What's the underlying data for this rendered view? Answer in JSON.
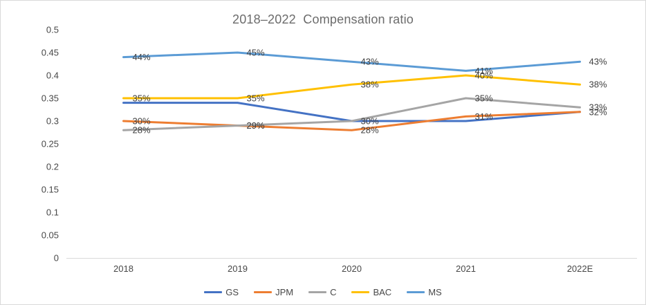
{
  "chart_data": {
    "type": "line",
    "title": "2018–2022  Compensation ratio",
    "categories": [
      "2018",
      "2019",
      "2020",
      "2021",
      "2022E"
    ],
    "series": [
      {
        "name": "GS",
        "color": "#4472C4",
        "values": [
          0.34,
          0.34,
          0.3,
          0.3,
          0.32
        ],
        "data_labels": [
          "",
          "",
          "",
          "",
          ""
        ]
      },
      {
        "name": "JPM",
        "color": "#ED7D31",
        "values": [
          0.3,
          0.29,
          0.28,
          0.31,
          0.32
        ],
        "data_labels": [
          "30%",
          "29%",
          "28%",
          "31%",
          "32%"
        ]
      },
      {
        "name": "C",
        "color": "#A5A5A5",
        "values": [
          0.28,
          0.29,
          0.3,
          0.35,
          0.33
        ],
        "data_labels": [
          "28%",
          "29%",
          "30%",
          "35%",
          "33%"
        ]
      },
      {
        "name": "BAC",
        "color": "#FFC000",
        "values": [
          0.35,
          0.35,
          0.38,
          0.4,
          0.38
        ],
        "data_labels": [
          "35%",
          "35%",
          "38%",
          "40%",
          "38%"
        ]
      },
      {
        "name": "MS",
        "color": "#5B9BD5",
        "values": [
          0.44,
          0.45,
          0.43,
          0.41,
          0.43
        ],
        "data_labels": [
          "44%",
          "45%",
          "43%",
          "41%",
          "43%"
        ]
      }
    ],
    "y_axis": {
      "ticks": [
        "0.5",
        "0.45",
        "0.4",
        "0.35",
        "0.3",
        "0.25",
        "0.2",
        "0.15",
        "0.1",
        "0.05",
        "0"
      ],
      "min": 0,
      "max": 0.5
    },
    "xlabel": "",
    "ylabel": "",
    "grid": false,
    "legend_position": "bottom",
    "data_label_position": "right",
    "colors": {
      "axis_line": "#d9d9d9",
      "axis_text": "#474747",
      "data_label_text": "#404040",
      "title_text": "#6b6b6b"
    }
  }
}
